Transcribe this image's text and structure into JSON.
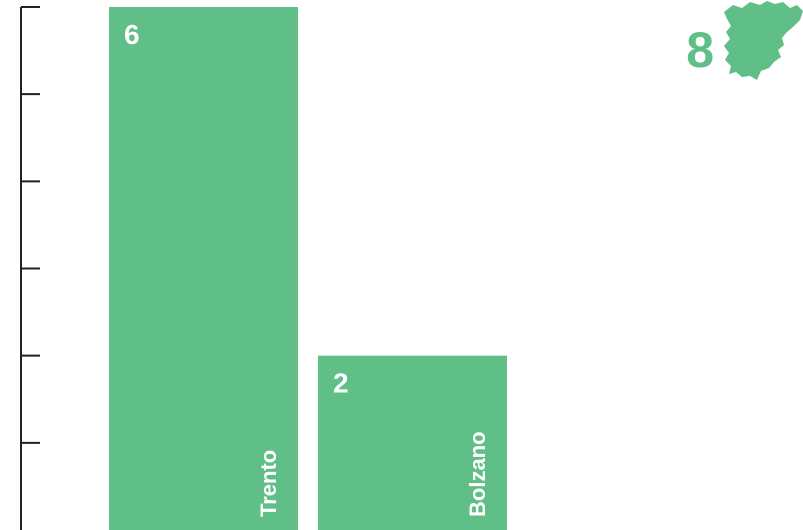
{
  "chart_data": {
    "type": "bar",
    "categories": [
      "Trento",
      "Bolzano"
    ],
    "values": [
      6,
      2
    ],
    "ylim": [
      0,
      6
    ],
    "title": "",
    "xlabel": "",
    "ylabel": "",
    "grid": false,
    "bar_color": "#5fbf87",
    "total": {
      "value": "8",
      "icon": "trentino-alto-adige-region-map-icon",
      "color": "#5fbf87"
    }
  }
}
